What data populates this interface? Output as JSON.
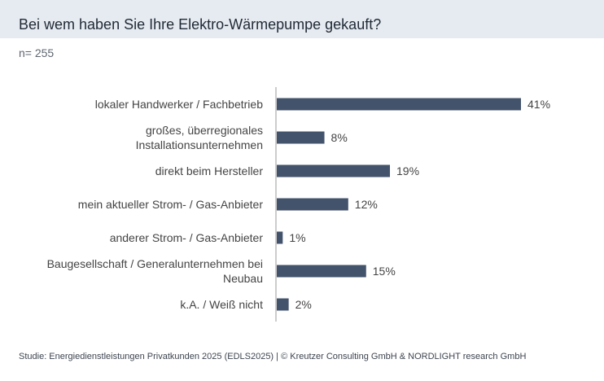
{
  "header": {
    "title": "Bei wem haben Sie Ihre Elektro-Wärmepumpe gekauft?",
    "sample": "n= 255"
  },
  "colors": {
    "bar": "#43536b",
    "title_band": "#e6ebf1",
    "axis": "#9a9a9a",
    "text": "#444444"
  },
  "chart_data": {
    "type": "bar",
    "orientation": "horizontal",
    "categories": [
      [
        "lokaler Handwerker / Fachbetrieb"
      ],
      [
        "großes, überregionales",
        "Installationsunternehmen"
      ],
      [
        "direkt beim Hersteller"
      ],
      [
        "mein aktueller Strom- / Gas-Anbieter"
      ],
      [
        "anderer Strom- / Gas-Anbieter"
      ],
      [
        "Baugesellschaft / Generalunternehmen bei",
        "Neubau"
      ],
      [
        "k.A. / Weiß nicht"
      ]
    ],
    "values": [
      41,
      8,
      19,
      12,
      1,
      15,
      2
    ],
    "value_suffix": "%",
    "xlim": [
      0,
      45
    ],
    "grid": false,
    "legend": "none"
  },
  "footer": {
    "source": "Studie: Energiedienstleistungen Privatkunden 2025 (EDLS2025) | © Kreutzer Consulting GmbH & NORDLIGHT research GmbH"
  }
}
